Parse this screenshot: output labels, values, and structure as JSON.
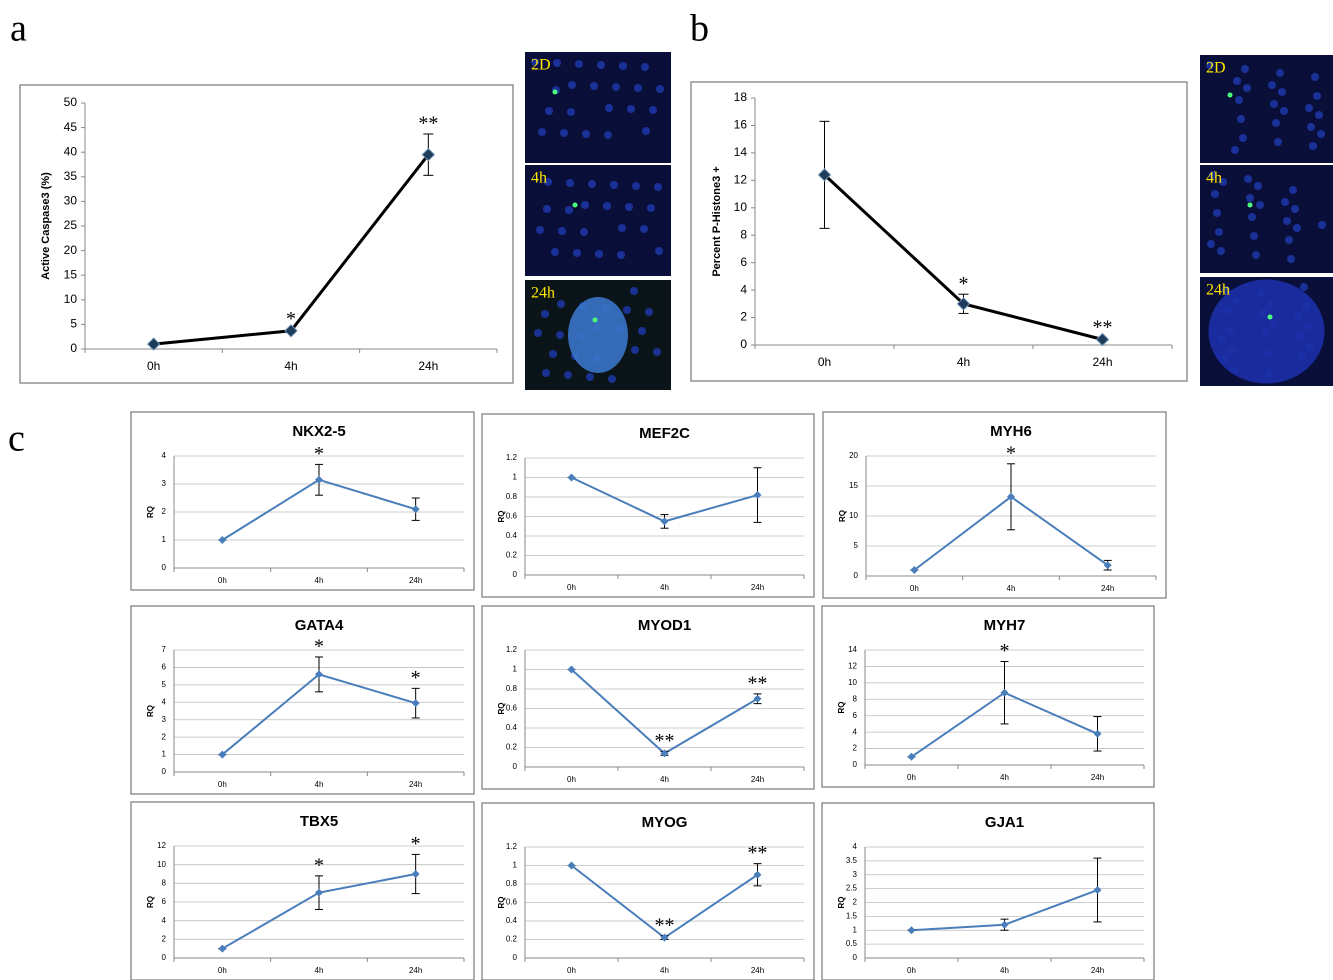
{
  "panel_labels": [
    "a",
    "b",
    "c"
  ],
  "micrographs": [
    {
      "labels": [
        "2D",
        "4h",
        "24h"
      ]
    },
    {
      "labels": [
        "2D",
        "4h",
        "24h"
      ]
    }
  ],
  "chart_data": [
    {
      "type": "line",
      "ylabel": "Active Caspase3 (%)",
      "categories": [
        "0h",
        "4h",
        "24h"
      ],
      "values": [
        1,
        3.7,
        39.5
      ],
      "errors": [
        0,
        0.3,
        4.2
      ],
      "annotations": [
        null,
        "*",
        "**"
      ],
      "ylim": [
        0,
        50
      ],
      "yticks": [
        0,
        5,
        10,
        15,
        20,
        25,
        30,
        35,
        40,
        45,
        50
      ],
      "grid": false,
      "color": "#000000",
      "marker_color": "#1f3b5a"
    },
    {
      "type": "line",
      "ylabel": "Percent P-Histone3 +",
      "categories": [
        "0h",
        "4h",
        "24h"
      ],
      "values": [
        12.4,
        3,
        0.4
      ],
      "errors": [
        3.9,
        0.7,
        0.1
      ],
      "annotations": [
        null,
        "*",
        "**"
      ],
      "ylim": [
        0,
        18
      ],
      "yticks": [
        0,
        2,
        4,
        6,
        8,
        10,
        12,
        14,
        16,
        18
      ],
      "grid": false,
      "color": "#000000",
      "marker_color": "#1f3b5a"
    },
    {
      "type": "line",
      "title": "NKX2-5",
      "ylabel": "RQ",
      "categories": [
        "0h",
        "4h",
        "24h"
      ],
      "values": [
        1,
        3.15,
        2.1
      ],
      "errors": [
        0,
        0.55,
        0.4
      ],
      "annotations": [
        null,
        "*",
        null
      ],
      "ylim": [
        0,
        4
      ],
      "yticks": [
        0,
        1,
        2,
        3,
        4
      ],
      "grid": true,
      "color": "#4a7ebb",
      "marker_color": "#4a7ebb"
    },
    {
      "type": "line",
      "title": "MEF2C",
      "ylabel": "RQ",
      "categories": [
        "0h",
        "4h",
        "24h"
      ],
      "values": [
        1,
        0.55,
        0.82
      ],
      "errors": [
        0,
        0.07,
        0.28
      ],
      "ylim": [
        0,
        1.2
      ],
      "yticks": [
        0,
        0.2,
        0.4,
        0.6,
        0.8,
        1,
        1.2
      ],
      "grid": true,
      "color": "#4a7ebb",
      "marker_color": "#4a7ebb"
    },
    {
      "type": "line",
      "title": "MYH6",
      "ylabel": "RQ",
      "categories": [
        "0h",
        "4h",
        "24h"
      ],
      "values": [
        1,
        13.2,
        1.8
      ],
      "errors": [
        0,
        5.5,
        0.8
      ],
      "annotations": [
        null,
        "*",
        null
      ],
      "ylim": [
        0,
        20
      ],
      "yticks": [
        0,
        5,
        10,
        15,
        20
      ],
      "grid": true,
      "color": "#4a7ebb",
      "marker_color": "#4a7ebb"
    },
    {
      "type": "line",
      "title": "GATA4",
      "ylabel": "RQ",
      "categories": [
        "0h",
        "4h",
        "24h"
      ],
      "values": [
        1,
        5.6,
        3.95
      ],
      "errors": [
        0,
        1,
        0.85
      ],
      "annotations": [
        null,
        "*",
        "*"
      ],
      "ylim": [
        0,
        7
      ],
      "yticks": [
        0,
        1,
        2,
        3,
        4,
        5,
        6,
        7
      ],
      "grid": true,
      "color": "#4a7ebb",
      "marker_color": "#4a7ebb"
    },
    {
      "type": "line",
      "title": "MYOD1",
      "ylabel": "RQ",
      "categories": [
        "0h",
        "4h",
        "24h"
      ],
      "values": [
        1,
        0.14,
        0.7
      ],
      "errors": [
        0,
        0.02,
        0.05
      ],
      "annotations": [
        null,
        "**",
        "**"
      ],
      "ylim": [
        0,
        1.2
      ],
      "yticks": [
        0,
        0.2,
        0.4,
        0.6,
        0.8,
        1,
        1.2
      ],
      "grid": true,
      "color": "#4a7ebb",
      "marker_color": "#4a7ebb"
    },
    {
      "type": "line",
      "title": "MYH7",
      "ylabel": "RQ",
      "categories": [
        "0h",
        "4h",
        "24h"
      ],
      "values": [
        1,
        8.8,
        3.8
      ],
      "errors": [
        0,
        3.8,
        2.1
      ],
      "annotations": [
        null,
        "*",
        null
      ],
      "ylim": [
        0,
        14
      ],
      "yticks": [
        0,
        2,
        4,
        6,
        8,
        10,
        12,
        14
      ],
      "grid": true,
      "color": "#4a7ebb",
      "marker_color": "#4a7ebb"
    },
    {
      "type": "line",
      "title": "TBX5",
      "ylabel": "RQ",
      "categories": [
        "0h",
        "4h",
        "24h"
      ],
      "values": [
        1,
        7,
        9
      ],
      "errors": [
        0,
        1.8,
        2.1
      ],
      "annotations": [
        null,
        "*",
        "*"
      ],
      "ylim": [
        0,
        12
      ],
      "yticks": [
        0,
        2,
        4,
        6,
        8,
        10,
        12
      ],
      "grid": true,
      "color": "#4a7ebb",
      "marker_color": "#4a7ebb"
    },
    {
      "type": "line",
      "title": "MYOG",
      "ylabel": "RQ",
      "categories": [
        "0h",
        "4h",
        "24h"
      ],
      "values": [
        1,
        0.22,
        0.9
      ],
      "errors": [
        0,
        0.02,
        0.12
      ],
      "annotations": [
        null,
        "**",
        "**"
      ],
      "ylim": [
        0,
        1.2
      ],
      "yticks": [
        0,
        0.2,
        0.4,
        0.6,
        0.8,
        1,
        1.2
      ],
      "grid": true,
      "color": "#4a7ebb",
      "marker_color": "#4a7ebb"
    },
    {
      "type": "line",
      "title": "GJA1",
      "ylabel": "RQ",
      "categories": [
        "0h",
        "4h",
        "24h"
      ],
      "values": [
        1,
        1.2,
        2.45
      ],
      "errors": [
        0,
        0.2,
        1.15
      ],
      "ylim": [
        0,
        4
      ],
      "yticks": [
        0,
        0.5,
        1,
        1.5,
        2,
        2.5,
        3,
        3.5,
        4
      ],
      "grid": true,
      "color": "#4a7ebb",
      "marker_color": "#4a7ebb"
    }
  ]
}
